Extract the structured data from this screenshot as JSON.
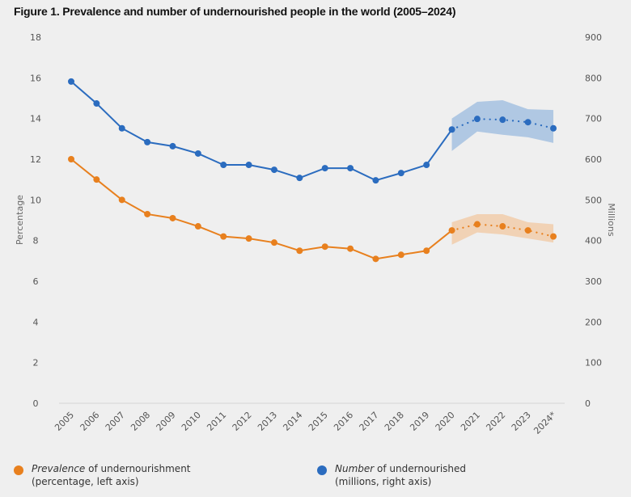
{
  "title": "Figure 1. Prevalence and number of undernourished people in the world (2005–2024)",
  "colors": {
    "prevalence": "#e8801e",
    "prevalence_band": "#f1ceae",
    "number": "#2b6cbf",
    "number_band": "#a9c3e1",
    "axis": "#d6d6d6",
    "background": "#efefef"
  },
  "legend": {
    "prevalence": {
      "emph": "Prevalence",
      "rest": " of undernourishment",
      "line2": "(percentage, left axis)"
    },
    "number": {
      "emph": "Number",
      "rest": " of undernourished",
      "line2": "(millions, right axis)"
    }
  },
  "chart_data": {
    "type": "line",
    "title": "Figure 1. Prevalence and number of undernourished people in the world (2005–2024)",
    "xlabel": "",
    "ylabel_left": "Percentage",
    "ylabel_right": "Millions",
    "ylim_left": [
      0,
      18
    ],
    "ylim_right": [
      0,
      900
    ],
    "yticks_left": [
      "0",
      "2",
      "4",
      "6",
      "8",
      "10",
      "12",
      "14",
      "16",
      "18"
    ],
    "yticks_right": [
      "0",
      "100",
      "200",
      "300",
      "400",
      "500",
      "600",
      "700",
      "800",
      "900"
    ],
    "categories": [
      "2005",
      "2006",
      "2007",
      "2008",
      "2009",
      "2010",
      "2011",
      "2012",
      "2013",
      "2014",
      "2015",
      "2016",
      "2017",
      "2018",
      "2019",
      "2020",
      "2021",
      "2022",
      "2023",
      "2024*"
    ],
    "grid": false,
    "legend_position": "bottom",
    "projection_start_index": 15,
    "series": [
      {
        "name": "Prevalence of undernourishment (percentage, left axis)",
        "axis": "left",
        "values": [
          12.0,
          11.0,
          10.0,
          9.3,
          9.1,
          8.7,
          8.2,
          8.1,
          7.9,
          7.5,
          7.7,
          7.6,
          7.1,
          7.3,
          7.5,
          8.5,
          8.8,
          8.7,
          8.5,
          8.2
        ],
        "band_years": [
          "2020",
          "2021",
          "2022",
          "2023",
          "2024*"
        ],
        "band_upper": [
          8.9,
          9.3,
          9.3,
          8.9,
          8.8
        ],
        "band_lower": [
          7.8,
          8.4,
          8.3,
          8.1,
          7.9
        ]
      },
      {
        "name": "Number of undernourished (millions, right axis)",
        "axis": "right",
        "values": [
          791,
          737,
          676,
          642,
          632,
          614,
          586,
          586,
          574,
          554,
          578,
          578,
          548,
          566,
          586,
          673,
          699,
          697,
          691,
          676
        ],
        "band_years": [
          "2020",
          "2021",
          "2022",
          "2023",
          "2024*"
        ],
        "band_upper": [
          700,
          741,
          745,
          723,
          721
        ],
        "band_lower": [
          620,
          668,
          660,
          654,
          640
        ]
      }
    ]
  }
}
